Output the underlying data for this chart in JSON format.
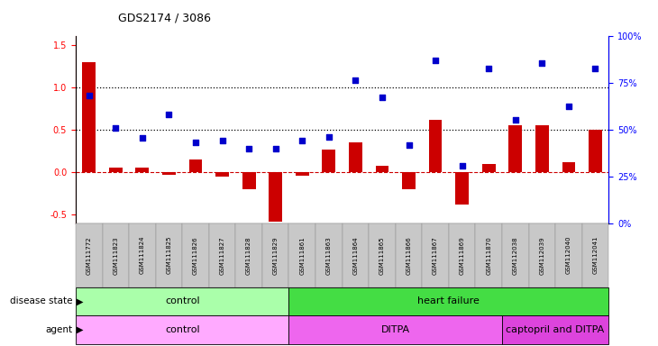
{
  "title": "GDS2174 / 3086",
  "samples": [
    "GSM111772",
    "GSM111823",
    "GSM111824",
    "GSM111825",
    "GSM111826",
    "GSM111827",
    "GSM111828",
    "GSM111829",
    "GSM111861",
    "GSM111863",
    "GSM111864",
    "GSM111865",
    "GSM111866",
    "GSM111867",
    "GSM111869",
    "GSM111870",
    "GSM112038",
    "GSM112039",
    "GSM112040",
    "GSM112041"
  ],
  "log2_ratio": [
    1.3,
    0.05,
    0.05,
    -0.03,
    0.15,
    -0.05,
    -0.2,
    -0.58,
    -0.04,
    0.27,
    0.35,
    0.08,
    -0.2,
    0.62,
    -0.38,
    0.1,
    0.55,
    0.55,
    0.12,
    0.5
  ],
  "percentile_rank": [
    0.9,
    0.52,
    0.4,
    0.68,
    0.35,
    0.37,
    0.28,
    0.28,
    0.37,
    0.42,
    1.08,
    0.88,
    0.32,
    1.32,
    0.08,
    1.22,
    0.62,
    1.28,
    0.78,
    1.22
  ],
  "bar_color": "#cc0000",
  "dot_color": "#0000cc",
  "dotted_line_1": 1.0,
  "dotted_line_2": 0.5,
  "dashed_line": 0.0,
  "ylim_left": [
    -0.6,
    1.6
  ],
  "disease_state_groups": [
    {
      "label": "control",
      "start": 0,
      "end": 8,
      "color": "#aaffaa"
    },
    {
      "label": "heart failure",
      "start": 8,
      "end": 20,
      "color": "#44dd44"
    }
  ],
  "agent_groups": [
    {
      "label": "control",
      "start": 0,
      "end": 8,
      "color": "#ffaaff"
    },
    {
      "label": "DITPA",
      "start": 8,
      "end": 16,
      "color": "#ee66ee"
    },
    {
      "label": "captopril and DITPA",
      "start": 16,
      "end": 20,
      "color": "#dd44dd"
    }
  ]
}
